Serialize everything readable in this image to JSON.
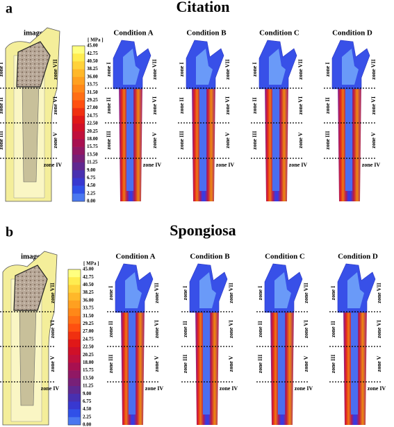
{
  "panels": [
    {
      "letter": "a",
      "title": "Citation",
      "image_label": "image",
      "unit": "[ MPa ]",
      "scale": [
        "45.00",
        "42.75",
        "40.50",
        "38.25",
        "36.00",
        "33.75",
        "31.50",
        "29.25",
        "27.00",
        "24.75",
        "22.50",
        "20.25",
        "18.00",
        "15.75",
        "13.50",
        "11.25",
        "9.00",
        "6.75",
        "4.50",
        "2.25",
        "0.00"
      ],
      "conditions": [
        "Condition A",
        "Condition B",
        "Condition C",
        "Condition D"
      ],
      "zones": [
        "zone I",
        "zone II",
        "zone III",
        "zone IV",
        "zone V",
        "zone VI",
        "zone VII"
      ]
    },
    {
      "letter": "b",
      "title": "Spongiosa",
      "image_label": "image",
      "unit": "[ MPa ]",
      "scale": [
        "45.00",
        "42.75",
        "40.50",
        "38.25",
        "36.00",
        "33.75",
        "31.50",
        "29.25",
        "27.00",
        "24.75",
        "22.50",
        "20.25",
        "18.00",
        "15.75",
        "13.50",
        "11.25",
        "9.00",
        "6.75",
        "4.50",
        "2.25",
        "0.00"
      ],
      "conditions": [
        "Condition A",
        "Condition B",
        "Condition C",
        "Condition D"
      ],
      "zones": [
        "zone I",
        "zone II",
        "zone III",
        "zone IV",
        "zone V",
        "zone VI",
        "zone VII"
      ]
    }
  ]
}
